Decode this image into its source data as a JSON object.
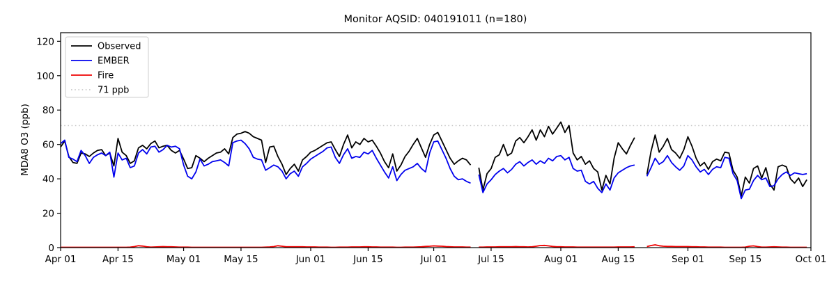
{
  "chart_data": {
    "type": "line",
    "title": "Monitor AQSID: 040191011 (n=180)",
    "xlabel": "",
    "ylabel": "MDA8 O3 (ppb)",
    "ylim": [
      0,
      125
    ],
    "yticks": [
      0,
      20,
      40,
      60,
      80,
      100,
      120
    ],
    "x_range_days": [
      0,
      183
    ],
    "x_start_date": "Apr 01",
    "x_end_date": "Oct 01",
    "xticks": [
      {
        "day": 0,
        "label": "Apr 01"
      },
      {
        "day": 14,
        "label": "Apr 15"
      },
      {
        "day": 30,
        "label": "May 01"
      },
      {
        "day": 44,
        "label": "May 15"
      },
      {
        "day": 61,
        "label": "Jun 01"
      },
      {
        "day": 75,
        "label": "Jun 15"
      },
      {
        "day": 91,
        "label": "Jul 01"
      },
      {
        "day": 105,
        "label": "Jul 15"
      },
      {
        "day": 122,
        "label": "Aug 01"
      },
      {
        "day": 136,
        "label": "Aug 15"
      },
      {
        "day": 153,
        "label": "Sep 01"
      },
      {
        "day": 167,
        "label": "Sep 15"
      },
      {
        "day": 183,
        "label": "Oct 01"
      }
    ],
    "grid": false,
    "legend_position": "upper-left",
    "threshold": {
      "label": "71 ppb",
      "value": 71,
      "color": "#c9c9c9",
      "style": "dotted"
    },
    "missing_day_indices": [
      101,
      141,
      142
    ],
    "series": [
      {
        "name": "Observed",
        "color": "#000000",
        "values": [
          58.5,
          62,
          53,
          49.5,
          49,
          55,
          54.5,
          53,
          55,
          56.5,
          57,
          53.5,
          55,
          47.5,
          63.5,
          55.5,
          53.5,
          49,
          50.5,
          58,
          59.5,
          57.5,
          60.5,
          62,
          58,
          59,
          59.5,
          56.5,
          55,
          56.5,
          51.5,
          46,
          46.5,
          53.5,
          52,
          50,
          52,
          53.5,
          55,
          55.5,
          57.5,
          54.5,
          64,
          66,
          66.5,
          67.5,
          66.5,
          64.5,
          63.5,
          62.5,
          49.5,
          58.5,
          59,
          53,
          48.5,
          42.5,
          46,
          48.5,
          44.5,
          51,
          53,
          55.5,
          56.5,
          58,
          59.5,
          61,
          61.5,
          57,
          53,
          60,
          65.5,
          58,
          61.5,
          60,
          63.5,
          61.5,
          62.5,
          59,
          55,
          50,
          46.5,
          54.5,
          44.5,
          48,
          53,
          56,
          60,
          63.5,
          58,
          52.5,
          60,
          65.5,
          67,
          62,
          57,
          52,
          48.5,
          50.5,
          52,
          51,
          48,
          null,
          46.5,
          33.5,
          43,
          46,
          52.5,
          54,
          60,
          53.5,
          55,
          62,
          64,
          61,
          64.5,
          68.5,
          62.5,
          68.5,
          64.5,
          70.5,
          66,
          69.5,
          73,
          67,
          71,
          55,
          51,
          53,
          48.5,
          50.5,
          46,
          44,
          33.5,
          42,
          37,
          52,
          61,
          57.5,
          54.5,
          59.5,
          64,
          null,
          null,
          42.5,
          56,
          65.5,
          55.5,
          59,
          63.5,
          57,
          55,
          52,
          57,
          64.5,
          59,
          52,
          47.5,
          49.5,
          45.5,
          50,
          51.5,
          50.5,
          55.5,
          55,
          45,
          41,
          30,
          41,
          37.5,
          46,
          47.5,
          40.5,
          46.5,
          37,
          33.5,
          47,
          48,
          47,
          40,
          37.5,
          40.5,
          35.5,
          39.5
        ]
      },
      {
        "name": "EMBER",
        "color": "#0000ee",
        "values": [
          60.5,
          62.5,
          52.5,
          51.5,
          50,
          56.5,
          53.5,
          49,
          52.5,
          54,
          55,
          53.5,
          55.5,
          41,
          55,
          51,
          52,
          46.5,
          47.5,
          55,
          57,
          54.5,
          58.5,
          59,
          55.5,
          57,
          59.5,
          58.5,
          59,
          57.5,
          48,
          41.5,
          40,
          44,
          51.5,
          47.5,
          48.5,
          50,
          50.5,
          51,
          49.5,
          47.5,
          61,
          62,
          62.5,
          60.5,
          57.5,
          52.5,
          51.5,
          51,
          45,
          46.5,
          48,
          47,
          44.5,
          40,
          43,
          44.5,
          41.5,
          47,
          49,
          51.5,
          53,
          54.5,
          56,
          58,
          58.5,
          52.5,
          49,
          54,
          57.5,
          52,
          53,
          52.5,
          55.5,
          54.5,
          56.5,
          52,
          48,
          44,
          40.5,
          47,
          39,
          42.5,
          45,
          46,
          47,
          49,
          46,
          44,
          55,
          61.5,
          62,
          57,
          52,
          46,
          41.5,
          39.5,
          40,
          38.5,
          37.5,
          null,
          42.5,
          32,
          37,
          39.5,
          42.5,
          44.5,
          46,
          43.5,
          45.5,
          48.5,
          50,
          47.5,
          49.5,
          51,
          48.5,
          50.5,
          49,
          52,
          50.5,
          53,
          53.5,
          51,
          52.5,
          46,
          44.5,
          45,
          38.5,
          37,
          38.5,
          34.5,
          32,
          37,
          33.5,
          40.5,
          43.5,
          45,
          46.5,
          47.5,
          48,
          null,
          null,
          41.5,
          46.5,
          52,
          48.5,
          50,
          53.5,
          49.5,
          47,
          45,
          47.5,
          53.5,
          51,
          47,
          44,
          45.5,
          42.5,
          45.5,
          47,
          46.5,
          52.5,
          52,
          43,
          39,
          28.5,
          33.5,
          34,
          39,
          42,
          39.5,
          40.5,
          35.5,
          36,
          40,
          42.5,
          44,
          42,
          43.5,
          43,
          42.5,
          43
        ]
      },
      {
        "name": "Fire",
        "color": "#ee0000",
        "values": [
          0.2,
          0.2,
          0.2,
          0.2,
          0.2,
          0.2,
          0.2,
          0.2,
          0.2,
          0.2,
          0.2,
          0.2,
          0.2,
          0.2,
          0.2,
          0.2,
          0.2,
          0.3,
          0.6,
          1.1,
          0.9,
          0.5,
          0.3,
          0.4,
          0.5,
          0.6,
          0.5,
          0.5,
          0.4,
          0.3,
          0.3,
          0.3,
          0.2,
          0.2,
          0.2,
          0.2,
          0.2,
          0.2,
          0.2,
          0.2,
          0.2,
          0.2,
          0.2,
          0.2,
          0.2,
          0.2,
          0.2,
          0.2,
          0.2,
          0.2,
          0.3,
          0.4,
          0.6,
          1.1,
          0.8,
          0.5,
          0.5,
          0.5,
          0.5,
          0.5,
          0.4,
          0.4,
          0.4,
          0.3,
          0.3,
          0.3,
          0.2,
          0.2,
          0.3,
          0.3,
          0.3,
          0.4,
          0.4,
          0.4,
          0.5,
          0.5,
          0.4,
          0.4,
          0.3,
          0.3,
          0.3,
          0.3,
          0.2,
          0.2,
          0.3,
          0.3,
          0.3,
          0.4,
          0.5,
          0.7,
          0.8,
          1.0,
          0.9,
          0.8,
          0.6,
          0.5,
          0.4,
          0.4,
          0.4,
          0.3,
          0.3,
          null,
          0.3,
          0.3,
          0.4,
          0.4,
          0.4,
          0.5,
          0.5,
          0.5,
          0.5,
          0.6,
          0.5,
          0.5,
          0.4,
          0.5,
          0.8,
          1.2,
          1.3,
          1.0,
          0.7,
          0.5,
          0.5,
          0.4,
          0.4,
          0.4,
          0.3,
          0.3,
          0.3,
          0.3,
          0.3,
          0.3,
          0.3,
          0.3,
          0.3,
          0.3,
          0.4,
          0.4,
          0.4,
          0.4,
          0.5,
          null,
          null,
          0.6,
          1.2,
          1.6,
          1.1,
          0.8,
          0.7,
          0.7,
          0.6,
          0.6,
          0.6,
          0.6,
          0.5,
          0.5,
          0.4,
          0.4,
          0.3,
          0.3,
          0.3,
          0.3,
          0.2,
          0.2,
          0.2,
          0.2,
          0.2,
          0.3,
          0.8,
          1.0,
          0.6,
          0.3,
          0.3,
          0.4,
          0.5,
          0.4,
          0.3,
          0.3,
          0.2,
          0.2,
          0.2,
          0.2,
          0.2
        ]
      }
    ],
    "legend_entries": [
      "Observed",
      "EMBER",
      "Fire",
      "71 ppb"
    ]
  }
}
